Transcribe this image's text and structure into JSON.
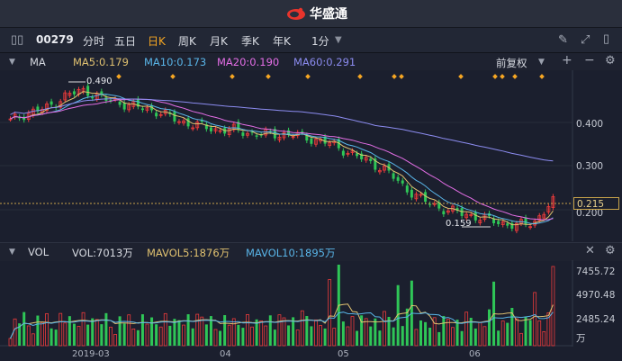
{
  "app": {
    "title": "华盛通"
  },
  "toolbar": {
    "stock_code": "00279",
    "periods": [
      "分时",
      "五日",
      "日K",
      "周K",
      "月K",
      "季K",
      "年K"
    ],
    "active_period": "日K",
    "interval": "1分"
  },
  "ma": {
    "label": "MA",
    "items": [
      {
        "text": "MA5:0.179",
        "color": "#e0c170"
      },
      {
        "text": "MA10:0.173",
        "color": "#59b5e8"
      },
      {
        "text": "MA20:0.190",
        "color": "#e46ee6"
      },
      {
        "text": "MA60:0.291",
        "color": "#8c8cf0"
      }
    ],
    "adjust": "前复权"
  },
  "price_axis": {
    "labels": [
      "0.400",
      "0.300",
      "0.200"
    ],
    "current": "0.215"
  },
  "annotations": {
    "high": "0.490",
    "low": "0.159"
  },
  "vol": {
    "label": "VOL",
    "items": [
      {
        "text": "VOL:7013万",
        "color": "#d6d9e0"
      },
      {
        "text": "MAVOL5:1876万",
        "color": "#e0c170"
      },
      {
        "text": "MAVOL10:1895万",
        "color": "#59b5e8"
      }
    ],
    "axis_labels": [
      "7455.72",
      "4970.48",
      "2485.24"
    ],
    "unit": "万"
  },
  "x_axis": {
    "labels": [
      "2019-03",
      "04",
      "05",
      "06"
    ]
  },
  "colors": {
    "up": "#ee3b3b",
    "down": "#2fc657",
    "bg": "#1b1f2e",
    "accent": "#f5a623"
  },
  "chart_data": {
    "type": "candlestick",
    "y_range": [
      0.15,
      0.5
    ],
    "approx_closes": [
      0.4,
      0.42,
      0.43,
      0.46,
      0.47,
      0.45,
      0.44,
      0.43,
      0.42,
      0.4,
      0.39,
      0.38,
      0.38,
      0.37,
      0.37,
      0.37,
      0.36,
      0.35,
      0.33,
      0.31,
      0.29,
      0.25,
      0.22,
      0.2,
      0.19,
      0.18,
      0.17,
      0.16,
      0.17,
      0.215
    ]
  }
}
